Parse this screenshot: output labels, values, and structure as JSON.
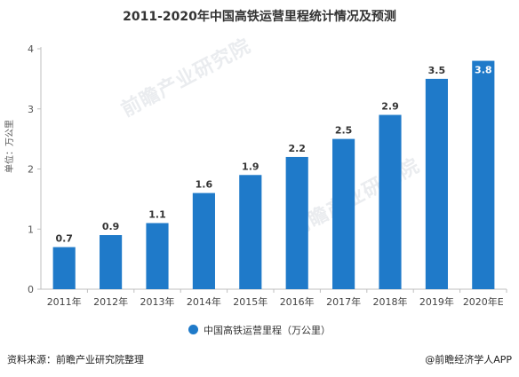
{
  "title": "2011-2020年中国高铁运营里程统计情况及预测",
  "unit_label": "单位：万公里",
  "watermark_text": "前瞻产业研究院",
  "footer": {
    "source": "资料来源：前瞻产业研究院整理",
    "brand": "@前瞻经济学人APP"
  },
  "colors": {
    "bar": "#1f7ac9",
    "axis": "#bfbfbf",
    "grid": "#d9d9d9"
  },
  "chart_data": {
    "type": "bar",
    "title": "2011-2020年中国高铁运营里程统计情况及预测",
    "ylabel": "单位：万公里",
    "xlabel": "",
    "categories": [
      "2011年",
      "2012年",
      "2013年",
      "2014年",
      "2015年",
      "2016年",
      "2017年",
      "2018年",
      "2019年",
      "2020年E"
    ],
    "series": [
      {
        "name": "中国高铁运营里程（万公里）",
        "values": [
          0.7,
          0.9,
          1.1,
          1.6,
          1.9,
          2.2,
          2.5,
          2.9,
          3.5,
          3.8
        ]
      }
    ],
    "data_labels": [
      "0.7",
      "0.9",
      "1.1",
      "1.6",
      "1.9",
      "2.2",
      "2.5",
      "2.9",
      "3.5",
      "3.8"
    ],
    "yticks": [
      "0",
      "1",
      "2",
      "3",
      "4"
    ],
    "ylim": [
      0,
      4
    ],
    "grid": false,
    "legend_position": "bottom"
  }
}
